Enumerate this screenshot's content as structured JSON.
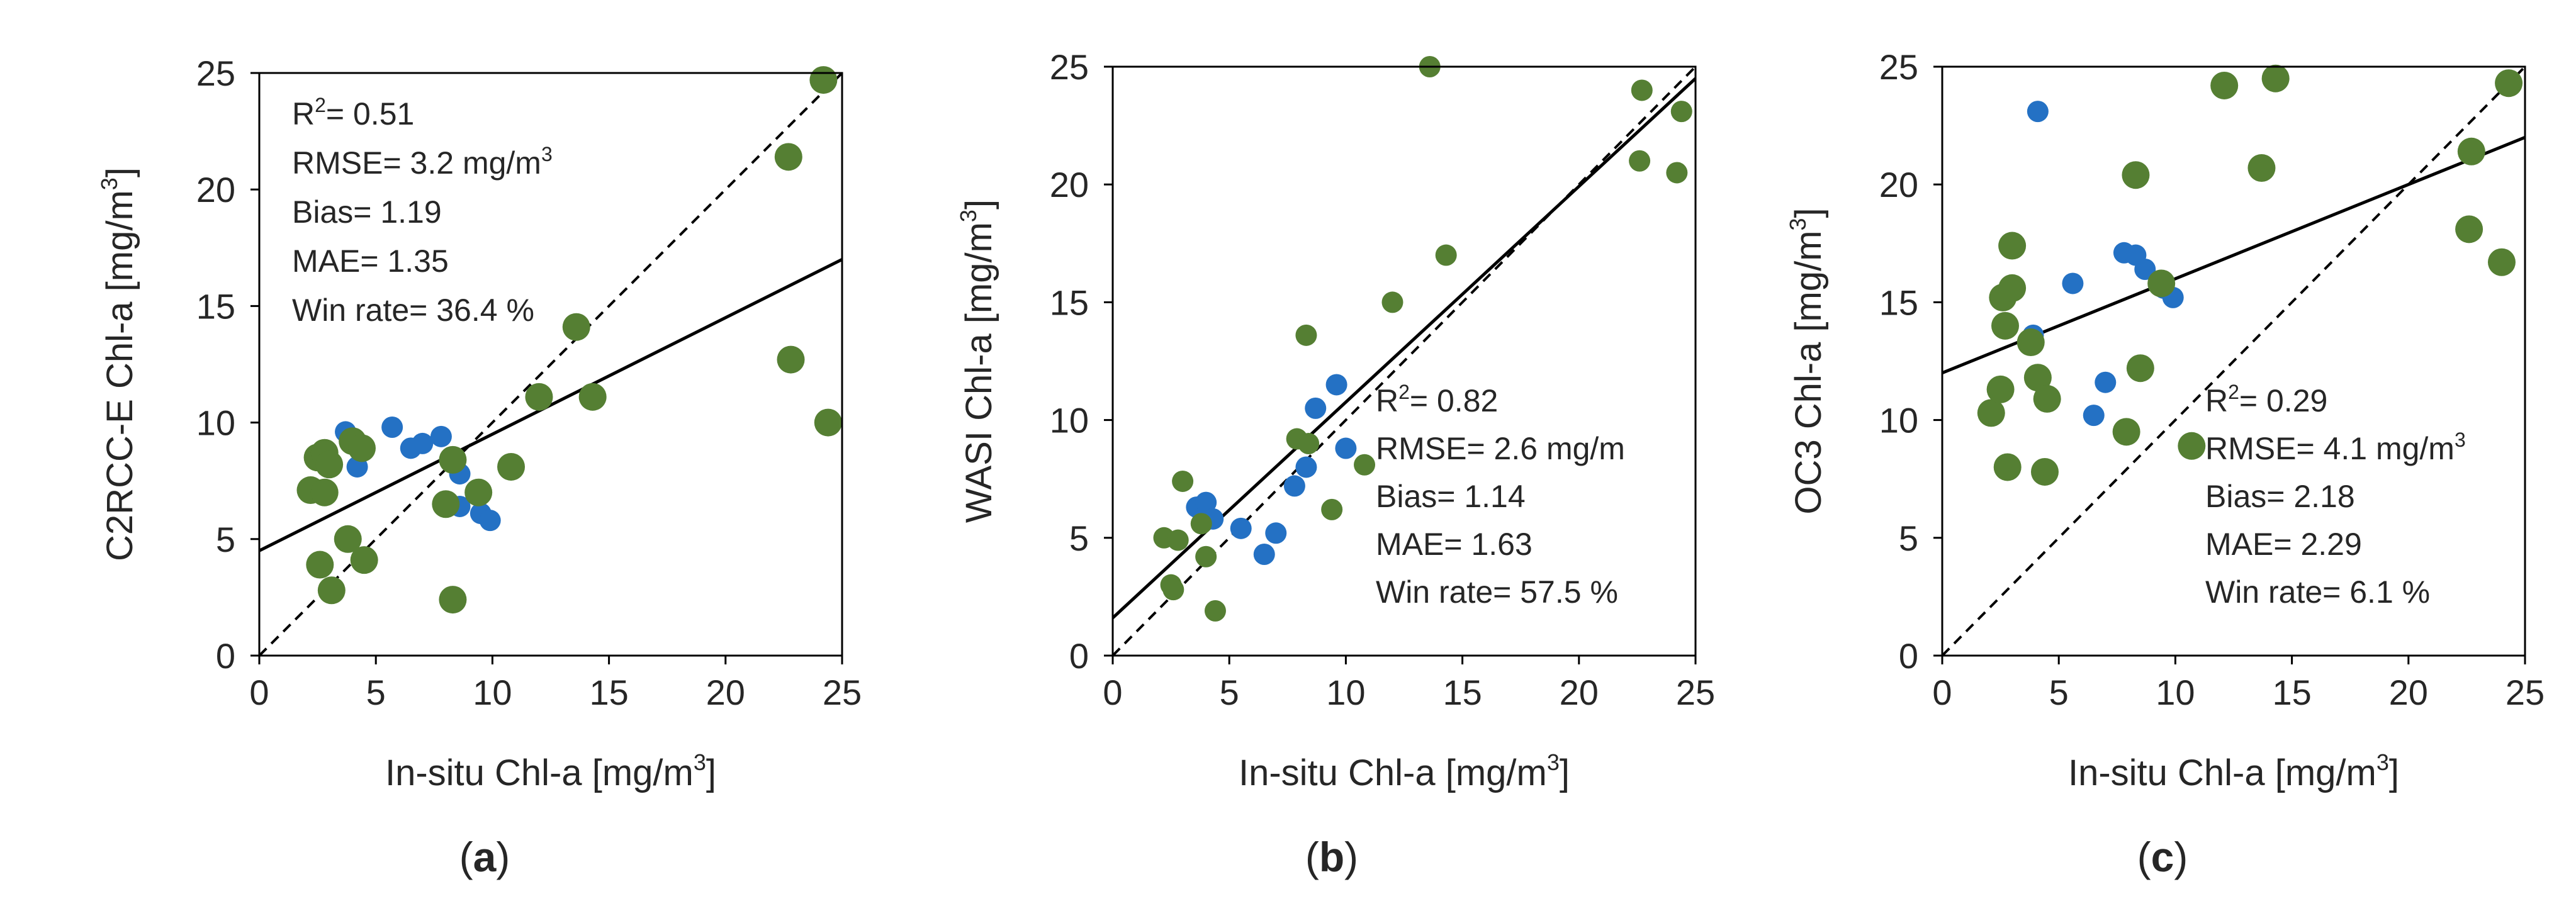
{
  "colors": {
    "blue": "#2471c4",
    "green": "#557f33",
    "axis": "#000000",
    "text": "#262626"
  },
  "chart_data": [
    {
      "type": "scatter",
      "panel_label": "a",
      "xlabel": "In-situ Chl-a [mg/m",
      "ylabel": "C2RCC-E Chl-a [mg/m",
      "label_unit_sup": "3",
      "xlim": [
        0,
        25
      ],
      "ylim": [
        0,
        25
      ],
      "xticks": [
        "0",
        "5",
        "10",
        "15",
        "20",
        "25"
      ],
      "yticks": [
        "0",
        "5",
        "10",
        "15",
        "20",
        "25"
      ],
      "stats": [
        {
          "pre": "R",
          "sup": "2",
          "post": "= 0.51"
        },
        {
          "pre": "RMSE= 3.2 mg/m",
          "sup": "3",
          "post": ""
        },
        {
          "pre": "Bias= 1.19",
          "sup": "",
          "post": ""
        },
        {
          "pre": "MAE= 1.35",
          "sup": "",
          "post": ""
        },
        {
          "pre": "Win rate= 36.4 %",
          "sup": "",
          "post": ""
        }
      ],
      "stats_position": "top-left",
      "one_to_one": [
        [
          0,
          0
        ],
        [
          25,
          25
        ]
      ],
      "fit_line": [
        [
          0,
          4.5
        ],
        [
          25,
          17.0
        ]
      ],
      "series": [
        {
          "name": "blue",
          "size": "small",
          "points": [
            [
              3.7,
              9.6
            ],
            [
              4.2,
              8.1
            ],
            [
              5.7,
              9.8
            ],
            [
              6.5,
              8.9
            ],
            [
              7.0,
              9.1
            ],
            [
              7.8,
              9.4
            ],
            [
              8.6,
              7.8
            ],
            [
              9.5,
              6.1
            ],
            [
              9.9,
              5.8
            ],
            [
              8.6,
              6.4
            ]
          ]
        },
        {
          "name": "green",
          "size": "large",
          "points": [
            [
              2.2,
              7.1
            ],
            [
              2.5,
              8.5
            ],
            [
              2.8,
              8.7
            ],
            [
              2.6,
              3.9
            ],
            [
              2.8,
              7.0
            ],
            [
              3.0,
              8.2
            ],
            [
              3.1,
              2.8
            ],
            [
              3.8,
              5.0
            ],
            [
              4.0,
              9.2
            ],
            [
              4.4,
              8.9
            ],
            [
              4.5,
              4.1
            ],
            [
              8.0,
              6.5
            ],
            [
              8.3,
              8.4
            ],
            [
              8.3,
              2.4
            ],
            [
              9.4,
              7.0
            ],
            [
              10.8,
              8.1
            ],
            [
              12.0,
              11.1
            ],
            [
              13.6,
              14.1
            ],
            [
              14.3,
              11.1
            ],
            [
              22.7,
              21.4
            ],
            [
              22.8,
              12.7
            ],
            [
              24.2,
              24.7
            ],
            [
              24.4,
              10.0
            ]
          ]
        }
      ]
    },
    {
      "type": "scatter",
      "panel_label": "b",
      "xlabel": "In-situ Chl-a [mg/m",
      "ylabel": "WASI Chl-a [mg/m",
      "label_unit_sup": "3",
      "xlim": [
        0,
        25
      ],
      "ylim": [
        0,
        25
      ],
      "xticks": [
        "0",
        "5",
        "10",
        "15",
        "20",
        "25"
      ],
      "yticks": [
        "0",
        "5",
        "10",
        "15",
        "20",
        "25"
      ],
      "stats": [
        {
          "pre": "R",
          "sup": "2",
          "post": "= 0.82"
        },
        {
          "pre": "RMSE= 2.6 mg/m",
          "sup": "",
          "post": ""
        },
        {
          "pre": "Bias= 1.14",
          "sup": "",
          "post": ""
        },
        {
          "pre": "MAE= 1.63",
          "sup": "",
          "post": ""
        },
        {
          "pre": "Win rate= 57.5 %",
          "sup": "",
          "post": ""
        }
      ],
      "stats_position": "bottom-right",
      "one_to_one": [
        [
          0,
          0
        ],
        [
          25,
          25
        ]
      ],
      "fit_line": [
        [
          0,
          1.6
        ],
        [
          25,
          24.5
        ]
      ],
      "series": [
        {
          "name": "blue",
          "size": "small",
          "points": [
            [
              3.6,
              6.3
            ],
            [
              4.0,
              6.5
            ],
            [
              4.3,
              5.8
            ],
            [
              5.5,
              5.4
            ],
            [
              6.5,
              4.3
            ],
            [
              7.0,
              5.2
            ],
            [
              7.8,
              7.2
            ],
            [
              8.3,
              8.0
            ],
            [
              8.7,
              10.5
            ],
            [
              9.6,
              11.5
            ],
            [
              10.0,
              8.8
            ]
          ]
        },
        {
          "name": "green",
          "size": "small",
          "points": [
            [
              2.2,
              5.0
            ],
            [
              2.5,
              3.0
            ],
            [
              2.6,
              2.8
            ],
            [
              2.8,
              4.9
            ],
            [
              3.0,
              7.4
            ],
            [
              3.8,
              5.6
            ],
            [
              4.0,
              4.2
            ],
            [
              4.4,
              1.9
            ],
            [
              7.9,
              9.2
            ],
            [
              8.3,
              13.6
            ],
            [
              8.4,
              9.0
            ],
            [
              9.4,
              6.2
            ],
            [
              10.8,
              8.1
            ],
            [
              12.0,
              15.0
            ],
            [
              13.6,
              25.0
            ],
            [
              14.3,
              17.0
            ],
            [
              22.6,
              21.0
            ],
            [
              22.7,
              24.0
            ],
            [
              24.2,
              20.5
            ],
            [
              24.4,
              23.1
            ]
          ]
        }
      ]
    },
    {
      "type": "scatter",
      "panel_label": "c",
      "xlabel": "In-situ Chl-a [mg/m",
      "ylabel": "OC3 Chl-a [mg/m",
      "label_unit_sup": "3",
      "xlim": [
        0,
        25
      ],
      "ylim": [
        0,
        25
      ],
      "xticks": [
        "0",
        "5",
        "10",
        "15",
        "20",
        "25"
      ],
      "yticks": [
        "0",
        "5",
        "10",
        "15",
        "20",
        "25"
      ],
      "stats": [
        {
          "pre": "R",
          "sup": "2",
          "post": "= 0.29"
        },
        {
          "pre": "RMSE= 4.1 mg/m",
          "sup": "3",
          "post": ""
        },
        {
          "pre": "Bias= 2.18",
          "sup": "",
          "post": ""
        },
        {
          "pre": "MAE= 2.29",
          "sup": "",
          "post": ""
        },
        {
          "pre": "Win rate= 6.1 %",
          "sup": "",
          "post": ""
        }
      ],
      "stats_position": "bottom-right",
      "one_to_one": [
        [
          0,
          0
        ],
        [
          25,
          25
        ]
      ],
      "fit_line": [
        [
          0,
          12.0
        ],
        [
          25,
          22.0
        ]
      ],
      "series": [
        {
          "name": "blue",
          "size": "small",
          "points": [
            [
              3.9,
              13.6
            ],
            [
              4.1,
              23.1
            ],
            [
              5.6,
              15.8
            ],
            [
              6.5,
              10.2
            ],
            [
              7.0,
              11.6
            ],
            [
              7.8,
              17.1
            ],
            [
              8.3,
              17.0
            ],
            [
              8.7,
              16.4
            ],
            [
              9.5,
              15.6
            ],
            [
              9.9,
              15.2
            ]
          ]
        },
        {
          "name": "green",
          "size": "large",
          "points": [
            [
              2.1,
              10.3
            ],
            [
              2.5,
              11.3
            ],
            [
              2.6,
              15.2
            ],
            [
              2.7,
              14.0
            ],
            [
              2.8,
              8.0
            ],
            [
              3.0,
              15.6
            ],
            [
              3.0,
              17.4
            ],
            [
              3.8,
              13.3
            ],
            [
              4.1,
              11.8
            ],
            [
              4.4,
              7.8
            ],
            [
              4.5,
              10.9
            ],
            [
              7.9,
              9.5
            ],
            [
              8.3,
              20.4
            ],
            [
              8.5,
              12.2
            ],
            [
              9.4,
              15.8
            ],
            [
              10.7,
              8.9
            ],
            [
              12.1,
              24.2
            ],
            [
              13.7,
              20.7
            ],
            [
              14.3,
              24.5
            ],
            [
              22.6,
              18.1
            ],
            [
              22.7,
              21.4
            ],
            [
              24.0,
              16.7
            ],
            [
              24.3,
              24.3
            ]
          ]
        }
      ]
    }
  ]
}
